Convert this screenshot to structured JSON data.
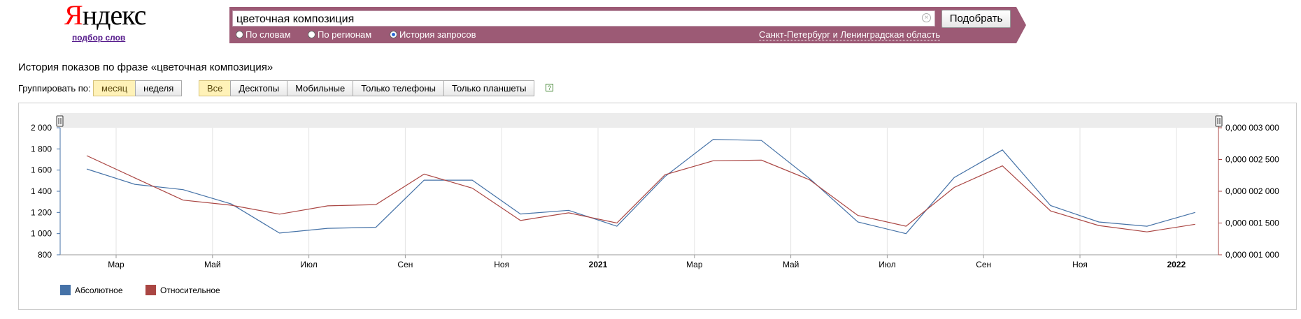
{
  "header": {
    "logo_first": "Я",
    "logo_rest": "ндекс",
    "sublogo": "подбор слов"
  },
  "search": {
    "query": "цветочная композиция",
    "submit_label": "Подобрать",
    "modes": [
      {
        "label": "По словам",
        "checked": false
      },
      {
        "label": "По регионам",
        "checked": false
      },
      {
        "label": "История запросов",
        "checked": true
      }
    ],
    "region": "Санкт-Петербург и Ленинградская область"
  },
  "page": {
    "title": "История показов по фразе «цветочная композиция»",
    "group_label": "Группировать по:",
    "group_buttons": [
      {
        "label": "месяц",
        "active": true
      },
      {
        "label": "неделя",
        "active": false
      }
    ],
    "device_buttons": [
      {
        "label": "Все",
        "active": true
      },
      {
        "label": "Десктопы",
        "active": false
      },
      {
        "label": "Мобильные",
        "active": false
      },
      {
        "label": "Только телефоны",
        "active": false
      },
      {
        "label": "Только планшеты",
        "active": false
      }
    ],
    "help_glyph": "?"
  },
  "chart_data": {
    "type": "line",
    "x_ticks": [
      "Мар",
      "Май",
      "Июл",
      "Сен",
      "Ноя",
      "2021",
      "Мар",
      "Май",
      "Июл",
      "Сен",
      "Ноя",
      "2022"
    ],
    "x_ticks_bold": [
      false,
      false,
      false,
      false,
      false,
      true,
      false,
      false,
      false,
      false,
      false,
      true
    ],
    "y_left": {
      "ticks": [
        "2 000",
        "1 800",
        "1 600",
        "1 400",
        "1 200",
        "1 000",
        "800"
      ],
      "range": [
        800,
        2000
      ]
    },
    "y_right": {
      "ticks": [
        "0,000 003 000",
        "0,000 002 500",
        "0,000 002 000",
        "0,000 001 500",
        "0,000 001 000"
      ],
      "range": [
        1e-06,
        3e-06
      ]
    },
    "series": [
      {
        "name": "Абсолютное",
        "color": "#4572a7",
        "axis": "left",
        "values": [
          1610,
          1465,
          1415,
          1280,
          1005,
          1050,
          1060,
          1505,
          1505,
          1185,
          1220,
          1070,
          1540,
          1890,
          1880,
          1520,
          1110,
          1000,
          1530,
          1790,
          1265,
          1110,
          1070,
          1200
        ]
      },
      {
        "name": "Относительное",
        "color": "#aa4643",
        "axis": "right",
        "values": [
          2.56e-06,
          2.21e-06,
          1.86e-06,
          1.78e-06,
          1.64e-06,
          1.77e-06,
          1.79e-06,
          2.27e-06,
          2.05e-06,
          1.54e-06,
          1.66e-06,
          1.5e-06,
          2.26e-06,
          2.48e-06,
          2.49e-06,
          2.18e-06,
          1.62e-06,
          1.45e-06,
          2.06e-06,
          2.4e-06,
          1.69e-06,
          1.46e-06,
          1.36e-06,
          1.48e-06
        ]
      }
    ]
  }
}
